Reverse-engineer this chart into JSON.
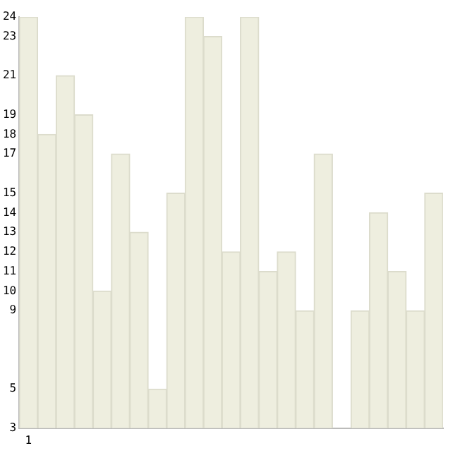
{
  "chart_data": {
    "type": "bar",
    "categories": [
      "1",
      null,
      null,
      null,
      null,
      null,
      null,
      null,
      null,
      null,
      null,
      null,
      null,
      null,
      null,
      null,
      null,
      null,
      null,
      null,
      null,
      null,
      null
    ],
    "values": [
      24,
      18,
      21,
      19,
      10,
      17,
      13,
      5,
      15,
      24,
      23,
      12,
      24,
      11,
      12,
      9,
      17,
      3,
      9,
      14,
      11,
      9,
      15
    ],
    "color": "#eeeedf",
    "ylim": [
      3,
      24
    ],
    "yticks": [
      3,
      5,
      9,
      10,
      11,
      12,
      13,
      14,
      15,
      17,
      18,
      19,
      21,
      23,
      24
    ],
    "grid": false,
    "legend": false
  }
}
